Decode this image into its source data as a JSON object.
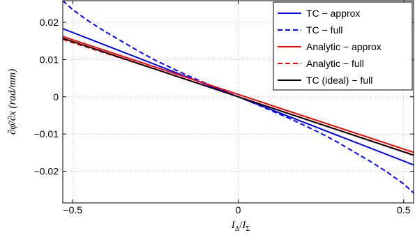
{
  "chart_data": {
    "type": "line",
    "title": "",
    "xlabel": "I_Δ/I_Σ",
    "ylabel": "∂φ̄/∂x  (rad/mm)",
    "xlim": [
      -0.53,
      0.53
    ],
    "ylim": [
      -0.0285,
      0.0258
    ],
    "grid": true,
    "legend_position": "top-right",
    "x_ticks": [
      -0.5,
      0,
      0.5
    ],
    "x_tick_labels": [
      "−0.5",
      "0",
      "0.5"
    ],
    "y_ticks": [
      0.02,
      0.01,
      0,
      -0.01,
      -0.02
    ],
    "y_tick_labels": [
      "0.02",
      "0.01",
      "0",
      "−0.01",
      "−0.02"
    ],
    "series": [
      {
        "name": "TC − approx",
        "color": "#0000ff",
        "dash": "solid",
        "x": [
          -0.53,
          0.53
        ],
        "y": [
          0.0183,
          -0.0183
        ]
      },
      {
        "name": "TC − full",
        "color": "#0000ff",
        "dash": "dashed",
        "x": [
          -0.53,
          -0.5,
          -0.45,
          -0.4,
          -0.35,
          -0.3,
          -0.25,
          -0.2,
          -0.15,
          -0.1,
          -0.05,
          0,
          0.05,
          0.1,
          0.15,
          0.2,
          0.25,
          0.3,
          0.35,
          0.4,
          0.45,
          0.5,
          0.53
        ],
        "y": [
          0.0258,
          0.0234,
          0.0202,
          0.0174,
          0.0148,
          0.0122,
          0.0098,
          0.0077,
          0.0056,
          0.0037,
          0.0018,
          0,
          -0.0018,
          -0.0037,
          -0.0056,
          -0.0077,
          -0.0098,
          -0.0122,
          -0.0148,
          -0.0174,
          -0.0202,
          -0.0234,
          -0.0258
        ]
      },
      {
        "name": "Analytic − approx",
        "color": "#ff0000",
        "dash": "solid",
        "x": [
          -0.53,
          0.53
        ],
        "y": [
          0.0162,
          -0.0149
        ]
      },
      {
        "name": "Analytic − full",
        "color": "#ff0000",
        "dash": "dashed",
        "x": [
          -0.53,
          -0.25,
          0,
          0.25,
          0.53
        ],
        "y": [
          0.0154,
          0.0074,
          0,
          -0.0074,
          -0.0156
        ]
      },
      {
        "name": "TC (ideal) − full",
        "color": "#000000",
        "dash": "solid",
        "x": [
          -0.53,
          0.53
        ],
        "y": [
          0.0157,
          -0.0157
        ]
      }
    ]
  }
}
